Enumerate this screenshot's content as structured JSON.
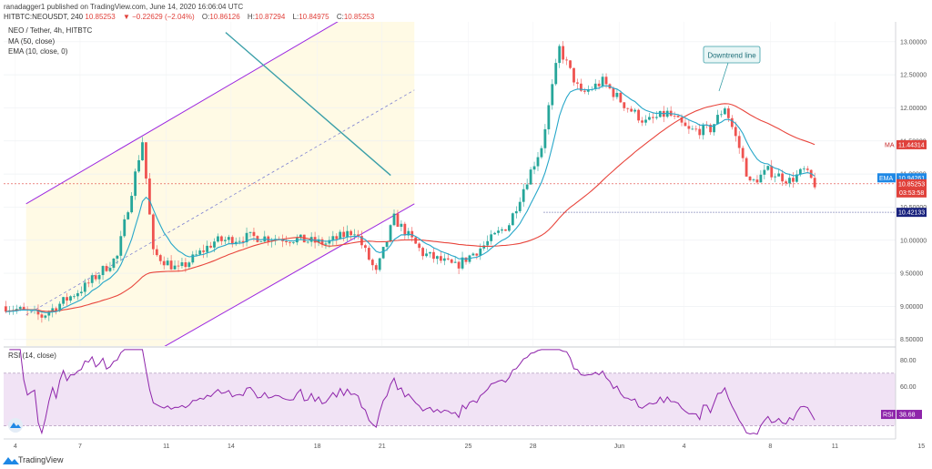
{
  "header": {
    "top_text": "ranadagger1 published on TradingView.com, June 14, 2020 16:06:04 UTC",
    "symbol": "HITBTC:NEOUSDT, 240",
    "last": "10.85253",
    "change_text": "▼ −0.22629 (−2.04%)",
    "o_label": "O:",
    "o_value": "10.86126",
    "h_label": "H:",
    "h_value": "10.87294",
    "l_label": "L:",
    "l_value": "10.84975",
    "c_label": "C:",
    "c_value": "10.85253"
  },
  "legend": {
    "title": "NEO / Tether, 4h, HITBTC",
    "ma": "MA (50, close)",
    "ema": "EMA (10, close, 0)",
    "rsi": "RSI (14, close)"
  },
  "annotation": {
    "text": "Downtrend line"
  },
  "badges": {
    "ma": {
      "label": "MA",
      "value": "11.44314"
    },
    "ema": {
      "label": "EMA",
      "value": "10.94261"
    },
    "price": {
      "value": "10.85253"
    },
    "countdown": {
      "value": "03:53:58"
    },
    "support": {
      "value": "10.42133"
    },
    "rsi": {
      "label": "RSI",
      "value": "38.68"
    }
  },
  "footer": {
    "brand": "TradingView"
  },
  "colors": {
    "up": "#26a69a",
    "down": "#ef5350",
    "channel": "#9c27e0",
    "downtrend": "#3a9fa8",
    "ma": "#e8453c",
    "ema": "#27a7c9",
    "rsi_band_fill": "#f3e5f5",
    "price_fill": "#fffbe6"
  },
  "chart_data": {
    "type": "candlestick",
    "title": "NEO / Tether, 4h, HITBTC",
    "x_axis": {
      "tick_labels": [
        "4",
        "7",
        "11",
        "14",
        "18",
        "21",
        "25",
        "28",
        "Jun",
        "4",
        "8",
        "11",
        "15",
        "18"
      ]
    },
    "y_axis": {
      "range": [
        8.4,
        13.3
      ],
      "tick_labels": [
        "8.50000",
        "9.00000",
        "9.50000",
        "10.00000",
        "10.50000",
        "11.00000",
        "11.50000",
        "12.00000",
        "12.50000",
        "13.00000"
      ]
    },
    "rsi_axis": {
      "range": [
        20,
        90
      ],
      "tick_labels": [
        "20.00",
        "40.00",
        "60.00",
        "80.00"
      ],
      "band": [
        30,
        70
      ]
    },
    "last_rsi": 38.68,
    "guide_points": [
      [
        0,
        9.0
      ],
      [
        10,
        8.85
      ],
      [
        22,
        9.3
      ],
      [
        31,
        9.75
      ],
      [
        38,
        11.5
      ],
      [
        41,
        9.8
      ],
      [
        48,
        9.55
      ],
      [
        58,
        9.98
      ],
      [
        68,
        10.05
      ],
      [
        80,
        10.02
      ],
      [
        89,
        9.95
      ],
      [
        97,
        10.15
      ],
      [
        103,
        9.5
      ],
      [
        108,
        10.33
      ],
      [
        116,
        9.8
      ],
      [
        125,
        9.6
      ],
      [
        133,
        9.92
      ],
      [
        140,
        10.25
      ],
      [
        145,
        10.92
      ],
      [
        149,
        11.42
      ],
      [
        154,
        12.9
      ],
      [
        160,
        12.2
      ],
      [
        166,
        12.4
      ],
      [
        172,
        12.05
      ],
      [
        178,
        11.78
      ],
      [
        184,
        11.92
      ],
      [
        190,
        11.65
      ],
      [
        196,
        11.68
      ],
      [
        200,
        12.02
      ],
      [
        204,
        11.4
      ],
      [
        207,
        10.85
      ],
      [
        212,
        11.05
      ],
      [
        218,
        10.9
      ],
      [
        222,
        11.05
      ],
      [
        225,
        10.85
      ]
    ],
    "candle_count": 226,
    "channel_upper": [
      [
        1.0,
        10.55
      ],
      [
        19.0,
        13.98
      ]
    ],
    "channel_lower": [
      [
        1.0,
        7.2
      ],
      [
        19.0,
        10.55
      ]
    ],
    "channel_mid": [
      [
        1.0,
        8.87
      ],
      [
        19.0,
        12.27
      ]
    ],
    "downtrend_line": [
      [
        10.25,
        13.14
      ],
      [
        17.9,
        10.98
      ]
    ],
    "support_level": 10.42133,
    "current_price": 10.85253
  }
}
